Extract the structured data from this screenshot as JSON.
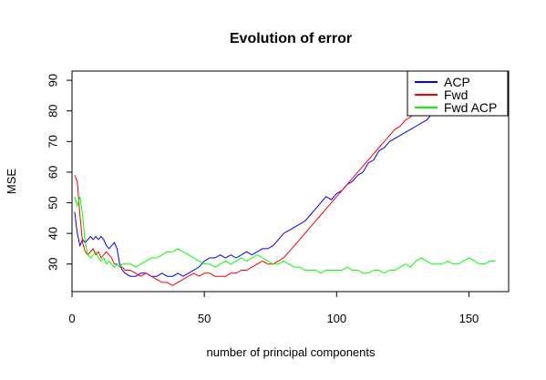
{
  "chart_data": {
    "type": "line",
    "title": "Evolution of error",
    "xlabel": "number of principal components",
    "ylabel": "MSE",
    "xlim": [
      0,
      165
    ],
    "ylim": [
      21,
      93
    ],
    "xticks": [
      0,
      50,
      100,
      150
    ],
    "yticks": [
      30,
      40,
      50,
      60,
      70,
      80,
      90
    ],
    "grid": false,
    "legend_position": "top-right",
    "series": [
      {
        "name": "ACP",
        "color": "#0000ff",
        "x": [
          1,
          2,
          3,
          4,
          5,
          6,
          7,
          8,
          9,
          10,
          11,
          12,
          13,
          14,
          15,
          16,
          17,
          18,
          19,
          20,
          22,
          24,
          26,
          28,
          30,
          32,
          34,
          36,
          38,
          40,
          42,
          44,
          46,
          48,
          50,
          52,
          54,
          56,
          58,
          60,
          62,
          64,
          66,
          68,
          70,
          72,
          74,
          76,
          78,
          80,
          82,
          84,
          86,
          88,
          90,
          92,
          94,
          96,
          98,
          100,
          102,
          104,
          106,
          108,
          110,
          112,
          114,
          116,
          118,
          120,
          122,
          124,
          126,
          128,
          130,
          132,
          134,
          136
        ],
        "y": [
          47,
          40,
          36,
          38,
          37,
          38,
          39,
          38,
          39,
          38,
          39,
          38,
          36,
          35,
          36,
          37,
          35,
          30,
          28,
          27,
          26,
          26,
          27,
          27,
          26,
          26,
          27,
          26,
          26,
          27,
          26,
          27,
          28,
          29,
          31,
          32,
          32,
          33,
          32,
          33,
          32,
          33,
          34,
          33,
          34,
          35,
          35,
          36,
          38,
          40,
          41,
          42,
          43,
          44,
          46,
          48,
          50,
          52,
          51,
          53,
          54,
          56,
          57,
          59,
          60,
          63,
          64,
          67,
          68,
          70,
          71,
          72,
          73,
          74,
          75,
          76,
          77,
          79
        ]
      },
      {
        "name": "Fwd",
        "color": "#ff0000",
        "x": [
          1,
          2,
          3,
          4,
          5,
          6,
          7,
          8,
          9,
          10,
          11,
          12,
          13,
          14,
          15,
          16,
          17,
          18,
          19,
          20,
          22,
          24,
          26,
          28,
          30,
          32,
          34,
          36,
          38,
          40,
          42,
          44,
          46,
          48,
          50,
          52,
          54,
          56,
          58,
          60,
          62,
          64,
          66,
          68,
          70,
          72,
          74,
          76,
          78,
          80,
          82,
          84,
          86,
          88,
          90,
          92,
          94,
          96,
          98,
          100,
          102,
          104,
          106,
          108,
          110,
          112,
          114,
          116,
          118,
          120,
          122,
          124,
          126,
          128,
          130,
          132,
          134
        ],
        "y": [
          59,
          57,
          46,
          37,
          34,
          33,
          34,
          35,
          33,
          34,
          32,
          33,
          34,
          33,
          32,
          30,
          30,
          29,
          29,
          28,
          28,
          27,
          26,
          27,
          26,
          25,
          24,
          24,
          23,
          24,
          25,
          26,
          27,
          26,
          27,
          27,
          26,
          26,
          26,
          27,
          27,
          28,
          28,
          29,
          30,
          31,
          30,
          30,
          31,
          32,
          34,
          36,
          38,
          40,
          42,
          44,
          46,
          48,
          50,
          52,
          54,
          56,
          58,
          60,
          62,
          64,
          66,
          68,
          70,
          72,
          74,
          75,
          77,
          78,
          80,
          80,
          80
        ]
      },
      {
        "name": "Fwd ACP",
        "color": "#00ff00",
        "x": [
          1,
          2,
          3,
          4,
          5,
          6,
          7,
          8,
          9,
          10,
          11,
          12,
          13,
          14,
          15,
          16,
          17,
          18,
          19,
          20,
          22,
          24,
          26,
          28,
          30,
          32,
          34,
          36,
          38,
          40,
          42,
          44,
          46,
          48,
          50,
          52,
          54,
          56,
          58,
          60,
          62,
          64,
          66,
          68,
          70,
          72,
          74,
          76,
          78,
          80,
          82,
          84,
          86,
          88,
          90,
          92,
          94,
          96,
          98,
          100,
          102,
          104,
          106,
          108,
          110,
          112,
          114,
          116,
          118,
          120,
          122,
          124,
          126,
          128,
          130,
          132,
          134,
          136,
          138,
          140,
          142,
          144,
          146,
          148,
          150,
          152,
          154,
          156,
          158,
          160
        ],
        "y": [
          52,
          49,
          52,
          46,
          37,
          33,
          32,
          33,
          34,
          32,
          31,
          32,
          30,
          31,
          30,
          29,
          30,
          29,
          30,
          30,
          30,
          29,
          30,
          31,
          32,
          32,
          33,
          34,
          34,
          35,
          34,
          33,
          32,
          31,
          30,
          30,
          29,
          30,
          31,
          30,
          31,
          32,
          31,
          32,
          33,
          32,
          31,
          30,
          30,
          31,
          30,
          29,
          29,
          28,
          28,
          28,
          27,
          28,
          28,
          28,
          28,
          29,
          28,
          28,
          27,
          27,
          28,
          28,
          27,
          28,
          28,
          29,
          30,
          29,
          31,
          32,
          31,
          30,
          30,
          30,
          31,
          30,
          30,
          31,
          32,
          31,
          30,
          30,
          31,
          31
        ]
      }
    ]
  }
}
